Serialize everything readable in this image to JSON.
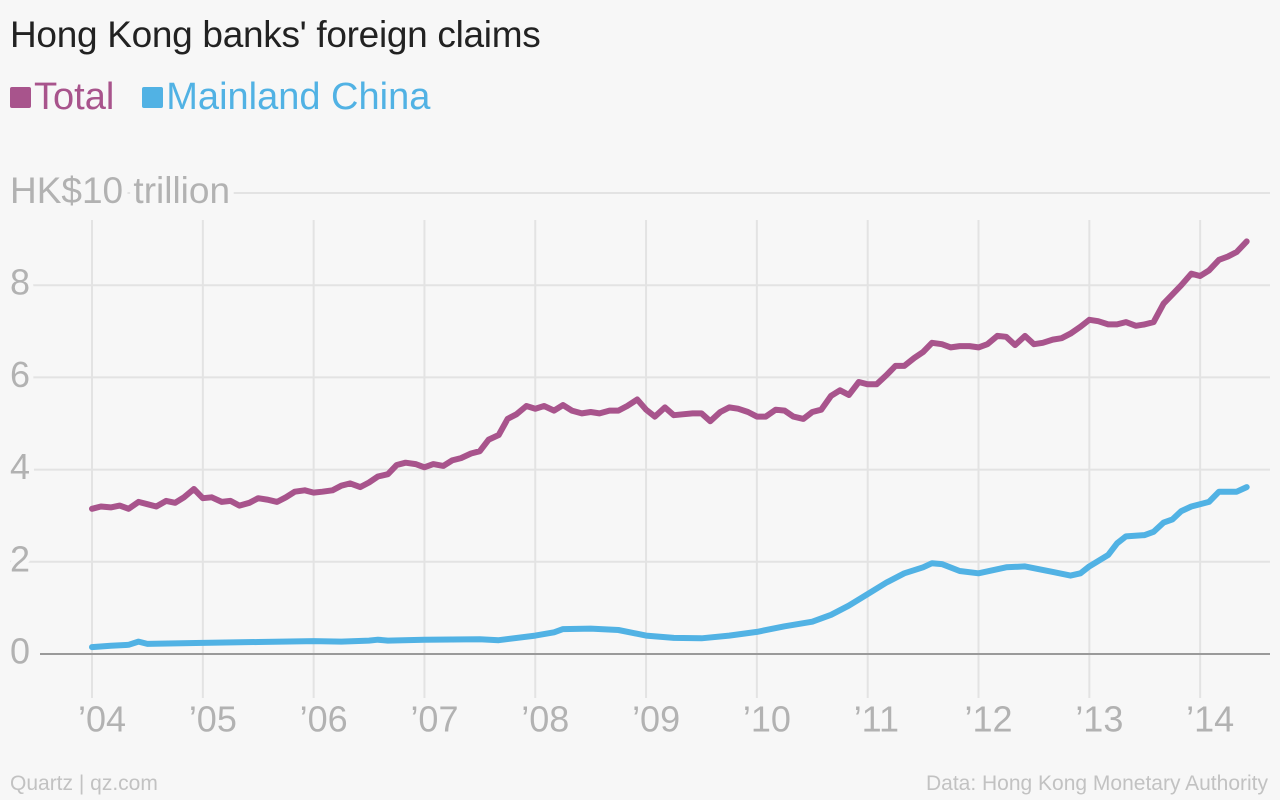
{
  "title": "Hong Kong banks' foreign claims",
  "footer": {
    "source_left": "Quartz | qz.com",
    "source_right": "Data: Hong Kong Monetary Authority"
  },
  "colors": {
    "total": "#a8548c",
    "mainland": "#51b2e4",
    "grid": "#e3e3e3",
    "axis_text": "#b2b2b2",
    "baseline": "#9a9a9a"
  },
  "chart_data": {
    "type": "line",
    "title": "Hong Kong banks' foreign claims",
    "ylabel": "HK$10 trillion",
    "xlabel": "",
    "ylim": [
      0,
      10
    ],
    "xlim": [
      2004,
      2014.45
    ],
    "y_ticks": [
      {
        "value": 0,
        "label": "0"
      },
      {
        "value": 2,
        "label": "2"
      },
      {
        "value": 4,
        "label": "4"
      },
      {
        "value": 6,
        "label": "6"
      },
      {
        "value": 8,
        "label": "8"
      },
      {
        "value": 10,
        "label": "HK$10 trillion"
      }
    ],
    "x_ticks": [
      {
        "value": 2004,
        "label": "’04"
      },
      {
        "value": 2005,
        "label": "’05"
      },
      {
        "value": 2006,
        "label": "’06"
      },
      {
        "value": 2007,
        "label": "’07"
      },
      {
        "value": 2008,
        "label": "’08"
      },
      {
        "value": 2009,
        "label": "’09"
      },
      {
        "value": 2010,
        "label": "’10"
      },
      {
        "value": 2011,
        "label": "’11"
      },
      {
        "value": 2012,
        "label": "’12"
      },
      {
        "value": 2013,
        "label": "’13"
      },
      {
        "value": 2014,
        "label": "’14"
      }
    ],
    "legend_position": "top-left",
    "grid": true,
    "series": [
      {
        "name": "Total",
        "color": "#a8548c",
        "points": [
          [
            2004.0,
            3.15
          ],
          [
            2004.08,
            3.2
          ],
          [
            2004.17,
            3.18
          ],
          [
            2004.25,
            3.22
          ],
          [
            2004.33,
            3.15
          ],
          [
            2004.42,
            3.3
          ],
          [
            2004.5,
            3.25
          ],
          [
            2004.58,
            3.2
          ],
          [
            2004.67,
            3.32
          ],
          [
            2004.75,
            3.28
          ],
          [
            2004.83,
            3.4
          ],
          [
            2004.92,
            3.58
          ],
          [
            2005.0,
            3.38
          ],
          [
            2005.08,
            3.4
          ],
          [
            2005.17,
            3.3
          ],
          [
            2005.25,
            3.32
          ],
          [
            2005.33,
            3.22
          ],
          [
            2005.42,
            3.28
          ],
          [
            2005.5,
            3.38
          ],
          [
            2005.58,
            3.35
          ],
          [
            2005.67,
            3.3
          ],
          [
            2005.75,
            3.4
          ],
          [
            2005.83,
            3.52
          ],
          [
            2005.92,
            3.55
          ],
          [
            2006.0,
            3.5
          ],
          [
            2006.08,
            3.52
          ],
          [
            2006.17,
            3.55
          ],
          [
            2006.25,
            3.65
          ],
          [
            2006.33,
            3.7
          ],
          [
            2006.42,
            3.62
          ],
          [
            2006.5,
            3.72
          ],
          [
            2006.58,
            3.85
          ],
          [
            2006.67,
            3.9
          ],
          [
            2006.75,
            4.1
          ],
          [
            2006.83,
            4.15
          ],
          [
            2006.92,
            4.12
          ],
          [
            2007.0,
            4.05
          ],
          [
            2007.08,
            4.12
          ],
          [
            2007.17,
            4.08
          ],
          [
            2007.25,
            4.2
          ],
          [
            2007.33,
            4.25
          ],
          [
            2007.42,
            4.35
          ],
          [
            2007.5,
            4.4
          ],
          [
            2007.58,
            4.65
          ],
          [
            2007.67,
            4.75
          ],
          [
            2007.75,
            5.1
          ],
          [
            2007.83,
            5.2
          ],
          [
            2007.92,
            5.38
          ],
          [
            2008.0,
            5.32
          ],
          [
            2008.08,
            5.38
          ],
          [
            2008.17,
            5.28
          ],
          [
            2008.25,
            5.4
          ],
          [
            2008.33,
            5.28
          ],
          [
            2008.42,
            5.22
          ],
          [
            2008.5,
            5.25
          ],
          [
            2008.58,
            5.22
          ],
          [
            2008.67,
            5.28
          ],
          [
            2008.75,
            5.28
          ],
          [
            2008.83,
            5.38
          ],
          [
            2008.92,
            5.52
          ],
          [
            2009.0,
            5.3
          ],
          [
            2009.08,
            5.15
          ],
          [
            2009.17,
            5.35
          ],
          [
            2009.25,
            5.18
          ],
          [
            2009.33,
            5.2
          ],
          [
            2009.42,
            5.22
          ],
          [
            2009.5,
            5.22
          ],
          [
            2009.58,
            5.05
          ],
          [
            2009.67,
            5.25
          ],
          [
            2009.75,
            5.35
          ],
          [
            2009.83,
            5.32
          ],
          [
            2009.92,
            5.25
          ],
          [
            2010.0,
            5.15
          ],
          [
            2010.08,
            5.15
          ],
          [
            2010.17,
            5.3
          ],
          [
            2010.25,
            5.28
          ],
          [
            2010.33,
            5.15
          ],
          [
            2010.42,
            5.1
          ],
          [
            2010.5,
            5.25
          ],
          [
            2010.58,
            5.3
          ],
          [
            2010.67,
            5.6
          ],
          [
            2010.75,
            5.72
          ],
          [
            2010.83,
            5.62
          ],
          [
            2010.92,
            5.9
          ],
          [
            2011.0,
            5.85
          ],
          [
            2011.08,
            5.85
          ],
          [
            2011.17,
            6.05
          ],
          [
            2011.25,
            6.25
          ],
          [
            2011.33,
            6.25
          ],
          [
            2011.42,
            6.42
          ],
          [
            2011.5,
            6.55
          ],
          [
            2011.58,
            6.75
          ],
          [
            2011.67,
            6.72
          ],
          [
            2011.75,
            6.65
          ],
          [
            2011.83,
            6.68
          ],
          [
            2011.92,
            6.68
          ],
          [
            2012.0,
            6.65
          ],
          [
            2012.08,
            6.72
          ],
          [
            2012.17,
            6.9
          ],
          [
            2012.25,
            6.88
          ],
          [
            2012.33,
            6.7
          ],
          [
            2012.42,
            6.9
          ],
          [
            2012.5,
            6.72
          ],
          [
            2012.58,
            6.75
          ],
          [
            2012.67,
            6.82
          ],
          [
            2012.75,
            6.85
          ],
          [
            2012.83,
            6.95
          ],
          [
            2012.92,
            7.1
          ],
          [
            2013.0,
            7.25
          ],
          [
            2013.08,
            7.22
          ],
          [
            2013.17,
            7.15
          ],
          [
            2013.25,
            7.15
          ],
          [
            2013.33,
            7.2
          ],
          [
            2013.42,
            7.12
          ],
          [
            2013.5,
            7.15
          ],
          [
            2013.58,
            7.2
          ],
          [
            2013.67,
            7.6
          ],
          [
            2013.75,
            7.8
          ],
          [
            2013.83,
            8.0
          ],
          [
            2013.92,
            8.25
          ],
          [
            2014.0,
            8.2
          ],
          [
            2014.08,
            8.32
          ],
          [
            2014.17,
            8.55
          ],
          [
            2014.25,
            8.62
          ],
          [
            2014.33,
            8.72
          ],
          [
            2014.42,
            8.95
          ]
        ]
      },
      {
        "name": "Mainland China",
        "color": "#51b2e4",
        "points": [
          [
            2004.0,
            0.15
          ],
          [
            2004.17,
            0.18
          ],
          [
            2004.33,
            0.2
          ],
          [
            2004.42,
            0.27
          ],
          [
            2004.5,
            0.22
          ],
          [
            2004.75,
            0.23
          ],
          [
            2005.0,
            0.24
          ],
          [
            2005.5,
            0.26
          ],
          [
            2006.0,
            0.28
          ],
          [
            2006.25,
            0.27
          ],
          [
            2006.5,
            0.29
          ],
          [
            2006.58,
            0.31
          ],
          [
            2006.67,
            0.29
          ],
          [
            2007.0,
            0.31
          ],
          [
            2007.5,
            0.32
          ],
          [
            2007.67,
            0.3
          ],
          [
            2008.0,
            0.4
          ],
          [
            2008.17,
            0.47
          ],
          [
            2008.25,
            0.54
          ],
          [
            2008.5,
            0.55
          ],
          [
            2008.75,
            0.52
          ],
          [
            2009.0,
            0.4
          ],
          [
            2009.25,
            0.35
          ],
          [
            2009.5,
            0.34
          ],
          [
            2009.75,
            0.4
          ],
          [
            2010.0,
            0.48
          ],
          [
            2010.25,
            0.6
          ],
          [
            2010.5,
            0.7
          ],
          [
            2010.67,
            0.85
          ],
          [
            2010.83,
            1.05
          ],
          [
            2011.0,
            1.3
          ],
          [
            2011.17,
            1.55
          ],
          [
            2011.33,
            1.75
          ],
          [
            2011.5,
            1.88
          ],
          [
            2011.58,
            1.97
          ],
          [
            2011.67,
            1.95
          ],
          [
            2011.83,
            1.8
          ],
          [
            2012.0,
            1.75
          ],
          [
            2012.25,
            1.88
          ],
          [
            2012.42,
            1.9
          ],
          [
            2012.67,
            1.78
          ],
          [
            2012.83,
            1.7
          ],
          [
            2012.92,
            1.75
          ],
          [
            2013.0,
            1.9
          ],
          [
            2013.17,
            2.15
          ],
          [
            2013.25,
            2.4
          ],
          [
            2013.33,
            2.55
          ],
          [
            2013.5,
            2.58
          ],
          [
            2013.58,
            2.65
          ],
          [
            2013.67,
            2.85
          ],
          [
            2013.75,
            2.92
          ],
          [
            2013.83,
            3.1
          ],
          [
            2013.92,
            3.2
          ],
          [
            2014.08,
            3.3
          ],
          [
            2014.17,
            3.52
          ],
          [
            2014.33,
            3.52
          ],
          [
            2014.42,
            3.62
          ]
        ]
      }
    ]
  }
}
